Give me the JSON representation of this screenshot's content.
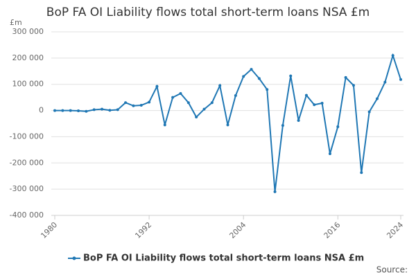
{
  "chart_data": {
    "type": "line",
    "title": "BoP FA OI Liability flows total short-term loans NSA £m",
    "y_label": "£m",
    "source": "Source:",
    "x": [
      1980,
      1981,
      1982,
      1983,
      1984,
      1985,
      1986,
      1987,
      1988,
      1989,
      1990,
      1991,
      1992,
      1993,
      1994,
      1995,
      1996,
      1997,
      1998,
      1999,
      2000,
      2001,
      2002,
      2003,
      2004,
      2005,
      2006,
      2007,
      2008,
      2009,
      2010,
      2011,
      2012,
      2013,
      2014,
      2015,
      2016,
      2017,
      2018,
      2019,
      2020,
      2021,
      2022,
      2023,
      2024
    ],
    "series": [
      {
        "name": "BoP FA OI Liability flows total short-term loans NSA £m",
        "color": "#1f77b4",
        "values": [
          0,
          0,
          0,
          -1000,
          -3000,
          3000,
          5000,
          1000,
          3000,
          30000,
          18000,
          20000,
          32000,
          92000,
          -55000,
          50000,
          65000,
          30000,
          -25000,
          5000,
          30000,
          95000,
          -55000,
          57000,
          130000,
          157000,
          122000,
          80000,
          -310000,
          -57000,
          132000,
          -38000,
          58000,
          22000,
          28000,
          -165000,
          -62000,
          126000,
          96000,
          -237000,
          -5000,
          45000,
          108000,
          210000,
          118000
        ]
      }
    ],
    "xlim": [
      1980,
      2024
    ],
    "xticks": [
      1980,
      1992,
      2004,
      2016,
      2024
    ],
    "ylim": [
      -400000,
      300000
    ],
    "yticks": [
      {
        "value": -400000,
        "label": "-400 000"
      },
      {
        "value": -300000,
        "label": "-300 000"
      },
      {
        "value": -200000,
        "label": "-200 000"
      },
      {
        "value": -100000,
        "label": "-100 000"
      },
      0,
      {
        "value": 100000,
        "label": "100 000"
      },
      {
        "value": 200000,
        "label": "200 000"
      },
      {
        "value": 300000,
        "label": "300 000"
      }
    ],
    "grid": true,
    "legend": "bottom"
  }
}
